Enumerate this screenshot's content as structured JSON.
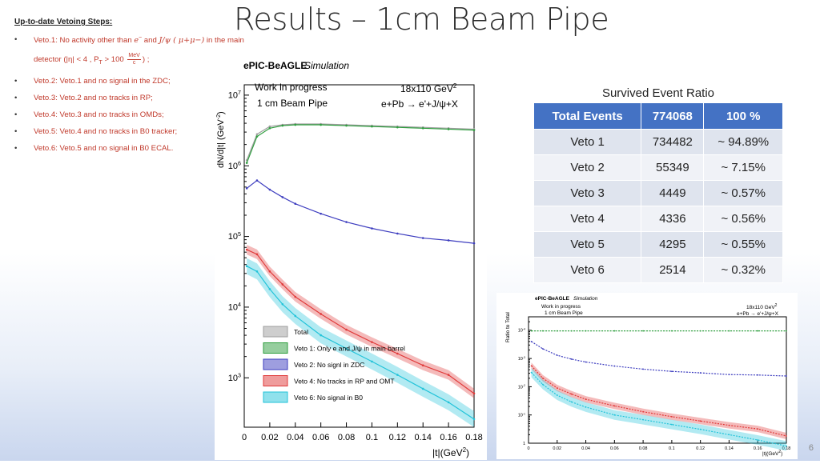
{
  "slide": {
    "title": "Results – 1cm Beam Pipe",
    "page_number": "6"
  },
  "steps": {
    "heading": "Up-to-date Vetoing Steps:",
    "bullet": "•",
    "veto1_a": "Veto.1: No activity other than",
    "veto1_e": "e",
    "veto1_and": "and",
    "veto1_jpsi": "J/ψ ( μ+μ−)",
    "veto1_b": "in the main",
    "veto1_c": "detector (|η| < 4 , P",
    "veto1_pt_sub": "T",
    "veto1_gt": " > 100",
    "veto1_mev": "MeV",
    "veto1_c_unit": "c",
    "veto1_end": ") ;",
    "items": [
      "Veto.2: Veto.1 and no signal in the ZDC;",
      "Veto.3: Veto.2 and no tracks in RP;",
      "Veto.4: Veto.3 and no tracks in OMDs;",
      "Veto.5: Veto.4 and no tracks in B0 tracker;",
      "Veto.6: Veto.5 and no signal in B0 ECAL."
    ]
  },
  "table": {
    "caption": "Survived Event Ratio",
    "headers": [
      "Total Events",
      "774068",
      "100 %"
    ],
    "rows": [
      [
        "Veto 1",
        "734482",
        "~ 94.89%"
      ],
      [
        "Veto 2",
        "55349",
        "~ 7.15%"
      ],
      [
        "Veto 3",
        "4449",
        "~ 0.57%"
      ],
      [
        "Veto 4",
        "4336",
        "~ 0.56%"
      ],
      [
        "Veto 5",
        "4295",
        "~ 0.55%"
      ],
      [
        "Veto 6",
        "2514",
        "~ 0.32%"
      ]
    ]
  },
  "colors": {
    "total": "#9e9e9e",
    "veto1": "#2e9e3e",
    "veto2": "#3d3dbf",
    "veto4": "#e03a3a",
    "veto6": "#22c3d9",
    "header": "#4472c4",
    "steps_text": "#c0392b"
  },
  "chart_data": [
    {
      "type": "line",
      "title": "ePIC-BeAGLE Simulation",
      "header_bold": "ePIC-BeAGLE",
      "header_italic": "Simulation",
      "note1": "Work in progress",
      "note2": "1 cm Beam Pipe",
      "energy": "18x110 GeV",
      "energy_sup": "2",
      "process": "e+Pb → e'+J/ψ+X",
      "xlabel": "|t|(GeV",
      "xlabel_sup": "2",
      "xlabel_end": ")",
      "ylabel": "dN/d|t| (GeV",
      "ylabel_sup": "-2",
      "ylabel_end": ")",
      "yscale": "log",
      "xlim": [
        0,
        0.18
      ],
      "ylim": [
        200,
        14000000
      ],
      "x_ticks": [
        "0",
        "0.02",
        "0.04",
        "0.06",
        "0.08",
        "0.1",
        "0.12",
        "0.14",
        "0.16",
        "0.18"
      ],
      "y_ticks": [
        {
          "base": "10",
          "exp": "3"
        },
        {
          "base": "10",
          "exp": "4"
        },
        {
          "base": "10",
          "exp": "5"
        },
        {
          "base": "10",
          "exp": "6"
        },
        {
          "base": "10",
          "exp": "7"
        }
      ],
      "x": [
        0.002,
        0.01,
        0.02,
        0.03,
        0.04,
        0.06,
        0.08,
        0.1,
        0.12,
        0.14,
        0.16,
        0.18
      ],
      "series": [
        {
          "name": "Total",
          "values": [
            1200000,
            2800000,
            3600000,
            3800000,
            3900000,
            3900000,
            3800000,
            3700000,
            3600000,
            3500000,
            3400000,
            3300000
          ]
        },
        {
          "name": "Veto 1: Only e and J/ψ in main barrel",
          "values": [
            1100000,
            2600000,
            3400000,
            3700000,
            3800000,
            3800000,
            3700000,
            3600000,
            3500000,
            3400000,
            3300000,
            3200000
          ]
        },
        {
          "name": "Veto 2: No signl in ZDC",
          "values": [
            480000,
            620000,
            460000,
            360000,
            290000,
            210000,
            160000,
            130000,
            110000,
            95000,
            88000,
            80000
          ]
        },
        {
          "name": "Veto 4: No tracks in RP and OMT",
          "values": [
            65000,
            56000,
            32000,
            21000,
            14000,
            8000,
            4800,
            3200,
            2200,
            1500,
            1100,
            600
          ]
        },
        {
          "name": "Veto 6: No signal in B0",
          "values": [
            38000,
            32000,
            18000,
            11000,
            7500,
            4000,
            2600,
            1700,
            1100,
            700,
            450,
            260
          ]
        }
      ],
      "legend": [
        "Total",
        "Veto 1: Only e and J/ψ in main barrel",
        "Veto 2: No signl in ZDC",
        "Veto 4: No tracks in RP and OMT",
        "Veto 6: No signal in B0"
      ]
    },
    {
      "type": "line",
      "header_bold": "ePIC-BeAGLE",
      "header_italic": "Simulation",
      "note1": "Work in progress",
      "note2": "1 cm Beam Pipe",
      "energy": "18x110 GeV",
      "energy_sup": "2",
      "process": "e+Pb → e'+J/ψ+X",
      "xlabel": "|t|(GeV",
      "xlabel_sup": "2",
      "xlabel_end": ")",
      "ylabel": "Ratio to Total",
      "yscale": "log",
      "xlim": [
        0,
        0.18
      ],
      "ylim": [
        0.0001,
        3
      ],
      "x_ticks": [
        "0",
        "0.02",
        "0.04",
        "0.06",
        "0.08",
        "0.1",
        "0.12",
        "0.14",
        "0.16",
        "0.18"
      ],
      "y_ticks": [
        {
          "base": "1",
          "exp": ""
        },
        {
          "base": "10",
          "exp": "-1"
        },
        {
          "base": "10",
          "exp": "-2"
        },
        {
          "base": "10",
          "exp": "-3"
        },
        {
          "base": "10",
          "exp": "-4"
        }
      ],
      "x": [
        0.002,
        0.01,
        0.02,
        0.03,
        0.04,
        0.06,
        0.08,
        0.1,
        0.12,
        0.14,
        0.16,
        0.18
      ],
      "series": [
        {
          "name": "Veto 1",
          "values": [
            0.95,
            0.95,
            0.95,
            0.95,
            0.95,
            0.95,
            0.95,
            0.95,
            0.95,
            0.95,
            0.95,
            0.95
          ]
        },
        {
          "name": "Veto 2",
          "values": [
            0.4,
            0.22,
            0.13,
            0.095,
            0.075,
            0.054,
            0.042,
            0.035,
            0.031,
            0.027,
            0.026,
            0.024
          ]
        },
        {
          "name": "Veto 4",
          "values": [
            0.055,
            0.02,
            0.009,
            0.0055,
            0.0036,
            0.0021,
            0.0013,
            0.00087,
            0.00061,
            0.00043,
            0.00032,
            0.00018
          ]
        },
        {
          "name": "Veto 6",
          "values": [
            0.032,
            0.012,
            0.005,
            0.0029,
            0.0019,
            0.001,
            0.00068,
            0.00046,
            0.00031,
            0.0002,
            0.00013,
            8e-05
          ]
        }
      ]
    }
  ]
}
